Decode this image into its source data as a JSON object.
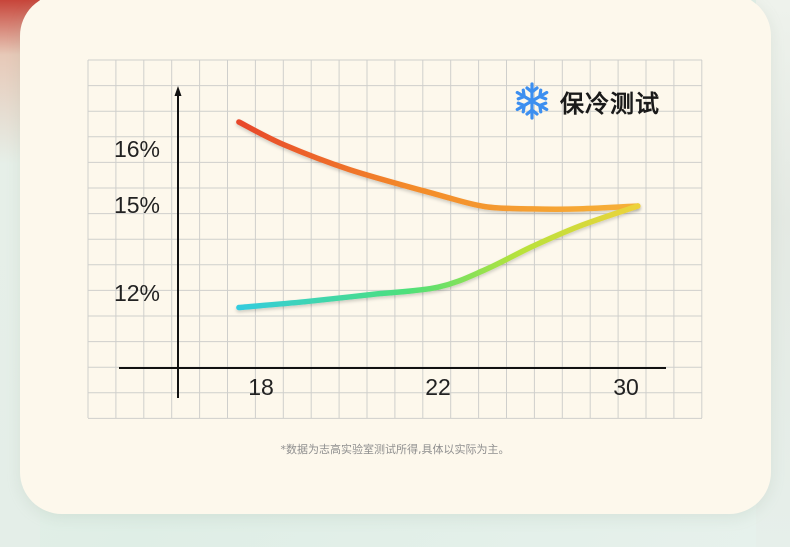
{
  "title": "保冷测试",
  "icon": "snowflake-icon",
  "footnote": "*数据为志高实验室测试所得,具体以实际为主。",
  "colors": {
    "card": "#fdf8ec",
    "grid": "#cfcfcc",
    "axis": "#111111",
    "icon": "#3d8ff0",
    "upper_curve": [
      "#e53a2a",
      "#f38a2a",
      "#f7b53a"
    ],
    "lower_curve": [
      "#2ec8f2",
      "#4ee07a",
      "#9ee23a",
      "#f5d03a"
    ]
  },
  "chart_data": {
    "type": "line",
    "title": "保冷测试",
    "x_ticks": [
      "18",
      "22",
      "30"
    ],
    "y_ticks": [
      "16%",
      "15%",
      "12%"
    ],
    "grid": true,
    "legend": "none",
    "series": [
      {
        "points": [
          {
            "x": 17.5,
            "y": 16.5
          },
          {
            "x": 18.5,
            "y": 16.1
          },
          {
            "x": 20,
            "y": 15.65
          },
          {
            "x": 22,
            "y": 15.2
          },
          {
            "x": 24,
            "y": 14.98
          },
          {
            "x": 26,
            "y": 14.9
          },
          {
            "x": 28,
            "y": 14.9
          },
          {
            "x": 30.5,
            "y": 15.0
          }
        ]
      },
      {
        "points": [
          {
            "x": 17.5,
            "y": 11.5
          },
          {
            "x": 19,
            "y": 11.7
          },
          {
            "x": 20.5,
            "y": 11.95
          },
          {
            "x": 22,
            "y": 12.2
          },
          {
            "x": 24,
            "y": 12.8
          },
          {
            "x": 26,
            "y": 13.6
          },
          {
            "x": 28,
            "y": 14.3
          },
          {
            "x": 30.5,
            "y": 15.0
          }
        ]
      }
    ]
  }
}
